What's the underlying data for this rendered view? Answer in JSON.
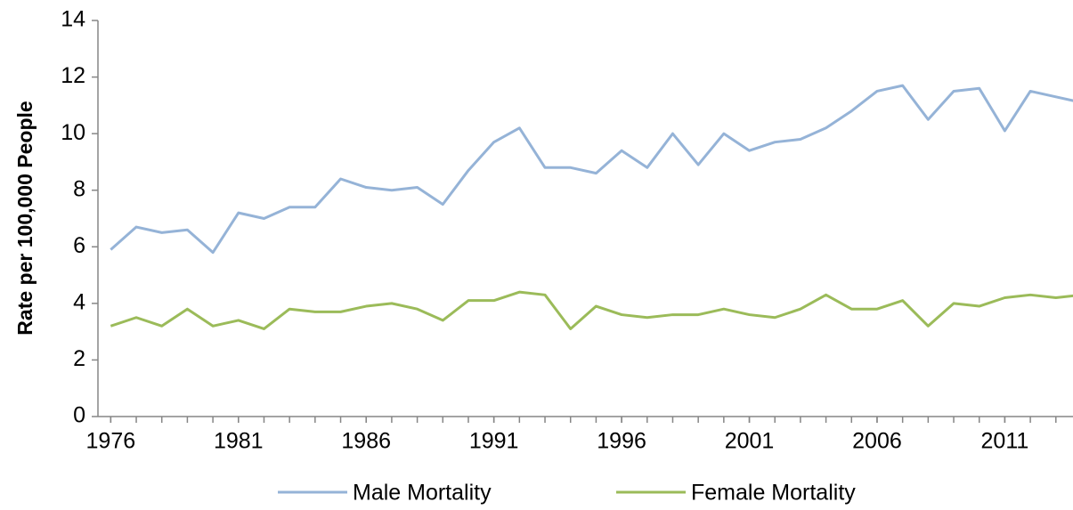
{
  "chart_data": {
    "type": "line",
    "y_label": "Rate per 100,000 People",
    "x": [
      1976,
      1977,
      1978,
      1979,
      1980,
      1981,
      1982,
      1983,
      1984,
      1985,
      1986,
      1987,
      1988,
      1989,
      1990,
      1991,
      1992,
      1993,
      1994,
      1995,
      1996,
      1997,
      1998,
      1999,
      2000,
      2001,
      2002,
      2003,
      2004,
      2005,
      2006,
      2007,
      2008,
      2009,
      2010,
      2011,
      2012,
      2013,
      2014
    ],
    "series": [
      {
        "name": "Male Mortality",
        "color": "#95b3d7",
        "values": [
          5.9,
          6.7,
          6.5,
          6.6,
          5.8,
          7.2,
          7.0,
          7.4,
          7.4,
          8.4,
          8.1,
          8.0,
          8.1,
          7.5,
          8.7,
          9.7,
          10.2,
          8.8,
          8.8,
          8.6,
          9.4,
          8.8,
          10.0,
          8.9,
          10.0,
          9.4,
          9.7,
          9.8,
          10.2,
          10.8,
          11.5,
          11.7,
          10.5,
          11.5,
          11.6,
          10.1,
          11.5,
          11.3,
          11.1
        ]
      },
      {
        "name": "Female Mortality",
        "color": "#9bbb59",
        "values": [
          3.2,
          3.5,
          3.2,
          3.8,
          3.2,
          3.4,
          3.1,
          3.8,
          3.7,
          3.7,
          3.9,
          4.0,
          3.8,
          3.4,
          4.1,
          4.1,
          4.4,
          4.3,
          3.1,
          3.9,
          3.6,
          3.5,
          3.6,
          3.6,
          3.8,
          3.6,
          3.5,
          3.8,
          4.3,
          3.8,
          3.8,
          4.1,
          3.2,
          4.0,
          3.9,
          4.2,
          4.3,
          4.2,
          4.3
        ]
      }
    ],
    "xlim": [
      1975.5,
      2013.67
    ],
    "xticks": [
      1976,
      1981,
      1986,
      1991,
      1996,
      2001,
      2006,
      2011
    ],
    "ylim": [
      0,
      14
    ],
    "yticks": [
      0,
      2,
      4,
      6,
      8,
      10,
      12,
      14
    ],
    "legend": "bottom"
  }
}
